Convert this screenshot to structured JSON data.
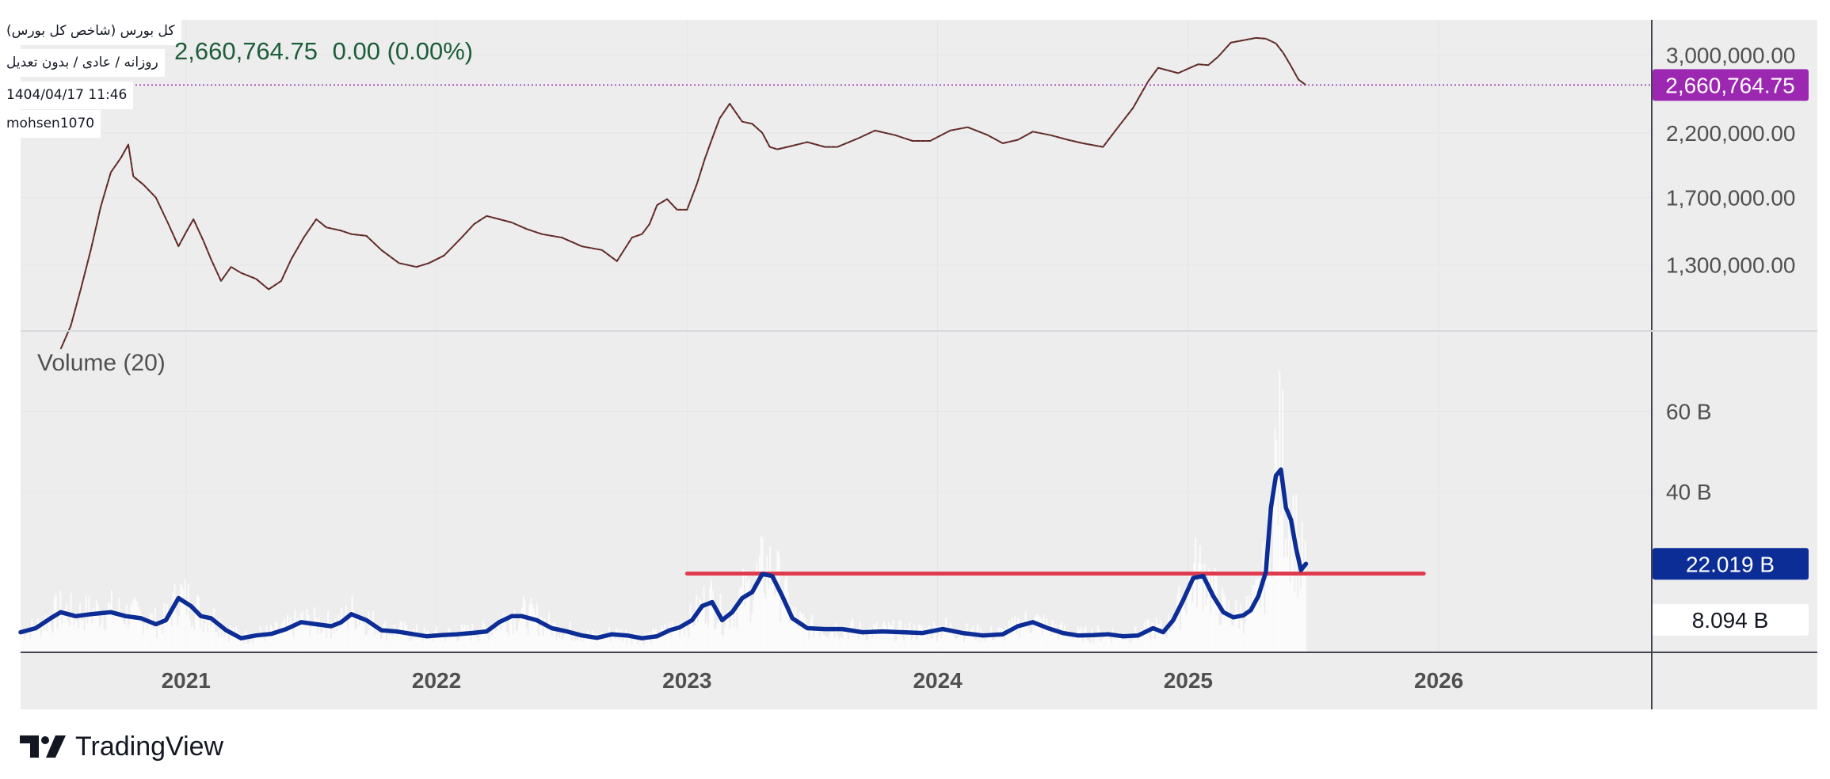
{
  "info": {
    "symbol_name": "کل بورس (شاخص کل بورس)",
    "interval": "روزانه / عادی / بدون تعدیل",
    "datetime": "1404/04/17 11:46",
    "author": "mohsen1070"
  },
  "header": {
    "last_price": "2,660,764.75",
    "change": "0.00 (0.00%)"
  },
  "volume_title": "Volume (20)",
  "brand": {
    "name": "TradingView"
  },
  "colors": {
    "pane_bg": "#ededed",
    "axis_line": "#434651",
    "grid": "#e2e6ea",
    "price_line": "#9c27b0",
    "price_badge": "#9c27b0",
    "candle_up": "#1b8a6b",
    "candle_down": "#6b1f1f",
    "ma_line": "#0d2d96",
    "volume_badge": "#0d2d96",
    "level_line": "#e03a4d",
    "volume_bars": "#ffffff"
  },
  "chart_data": {
    "type": "line",
    "price_scale": "log",
    "x_axis": {
      "ticks": [
        "2021",
        "2022",
        "2023",
        "2024",
        "2025",
        "2026"
      ],
      "range": [
        2020.34,
        2026.85
      ]
    },
    "price_pane": {
      "ylim": [
        1000000,
        3450000
      ],
      "tick_labels": [
        {
          "value": 1300000,
          "label": "1,300,000.00"
        },
        {
          "value": 1700000,
          "label": "1,700,000.00"
        },
        {
          "value": 2200000,
          "label": "2,200,000.00"
        },
        {
          "value": 3000000,
          "label": "3,000,000.00"
        }
      ],
      "last_value": 2660764.75,
      "last_label": "2,660,764.75",
      "series": {
        "x": [
          2020.5,
          2020.54,
          2020.58,
          2020.62,
          2020.66,
          2020.7,
          2020.74,
          2020.77,
          2020.79,
          2020.83,
          2020.88,
          2020.93,
          2020.97,
          2021.0,
          2021.03,
          2021.07,
          2021.1,
          2021.14,
          2021.18,
          2021.22,
          2021.28,
          2021.33,
          2021.38,
          2021.42,
          2021.47,
          2021.52,
          2021.56,
          2021.62,
          2021.66,
          2021.72,
          2021.78,
          2021.85,
          2021.92,
          2021.97,
          2022.03,
          2022.1,
          2022.15,
          2022.2,
          2022.25,
          2022.3,
          2022.36,
          2022.42,
          2022.5,
          2022.58,
          2022.66,
          2022.72,
          2022.78,
          2022.82,
          2022.85,
          2022.88,
          2022.92,
          2022.96,
          2023.0,
          2023.04,
          2023.07,
          2023.1,
          2023.13,
          2023.17,
          2023.22,
          2023.26,
          2023.3,
          2023.33,
          2023.36,
          2023.42,
          2023.48,
          2023.55,
          2023.6,
          2023.68,
          2023.75,
          2023.83,
          2023.9,
          2023.97,
          2024.05,
          2024.12,
          2024.2,
          2024.26,
          2024.32,
          2024.38,
          2024.45,
          2024.52,
          2024.58,
          2024.66,
          2024.72,
          2024.78,
          2024.84,
          2024.88,
          2024.92,
          2024.96,
          2025.0,
          2025.04,
          2025.08,
          2025.12,
          2025.17,
          2025.22,
          2025.27,
          2025.31,
          2025.35,
          2025.38,
          2025.41,
          2025.44,
          2025.47
        ],
        "y": [
          930000,
          1020000,
          1180000,
          1380000,
          1640000,
          1880000,
          1990000,
          2100000,
          1850000,
          1790000,
          1700000,
          1530000,
          1400000,
          1480000,
          1560000,
          1430000,
          1330000,
          1220000,
          1290000,
          1260000,
          1230000,
          1180000,
          1220000,
          1330000,
          1450000,
          1560000,
          1510000,
          1490000,
          1470000,
          1460000,
          1380000,
          1310000,
          1290000,
          1310000,
          1350000,
          1450000,
          1530000,
          1580000,
          1560000,
          1540000,
          1500000,
          1470000,
          1450000,
          1400000,
          1380000,
          1320000,
          1450000,
          1470000,
          1530000,
          1650000,
          1690000,
          1620000,
          1620000,
          1800000,
          1980000,
          2150000,
          2330000,
          2470000,
          2300000,
          2280000,
          2200000,
          2080000,
          2060000,
          2090000,
          2120000,
          2080000,
          2080000,
          2150000,
          2220000,
          2180000,
          2130000,
          2130000,
          2220000,
          2250000,
          2180000,
          2110000,
          2140000,
          2210000,
          2180000,
          2140000,
          2110000,
          2080000,
          2250000,
          2430000,
          2700000,
          2850000,
          2820000,
          2790000,
          2840000,
          2890000,
          2880000,
          2980000,
          3150000,
          3180000,
          3210000,
          3200000,
          3140000,
          3020000,
          2870000,
          2720000,
          2660764.75
        ]
      }
    },
    "volume_pane": {
      "ylim": [
        0,
        80
      ],
      "unit": "B",
      "tick_labels": [
        {
          "value": 40,
          "label": "40 B"
        },
        {
          "value": 60,
          "label": "60 B"
        }
      ],
      "last_ma_value": 22.019,
      "last_ma_label": "22.019 B",
      "last_volume_value": 8.094,
      "last_volume_label": "8.094 B",
      "horizontal_level": {
        "value": 19.6,
        "x_start": 2023.0,
        "x_end": 2025.94
      },
      "ma_series": {
        "name": "Volume (20)",
        "x": [
          2020.34,
          2020.4,
          2020.46,
          2020.5,
          2020.56,
          2020.62,
          2020.7,
          2020.76,
          2020.82,
          2020.88,
          2020.92,
          2020.97,
          2021.02,
          2021.06,
          2021.1,
          2021.16,
          2021.22,
          2021.28,
          2021.34,
          2021.4,
          2021.46,
          2021.52,
          2021.58,
          2021.62,
          2021.66,
          2021.72,
          2021.78,
          2021.84,
          2021.9,
          2021.96,
          2022.02,
          2022.08,
          2022.14,
          2022.2,
          2022.25,
          2022.3,
          2022.34,
          2022.4,
          2022.46,
          2022.52,
          2022.58,
          2022.64,
          2022.7,
          2022.76,
          2022.82,
          2022.88,
          2022.93,
          2022.97,
          2023.02,
          2023.06,
          2023.1,
          2023.14,
          2023.18,
          2023.22,
          2023.26,
          2023.3,
          2023.34,
          2023.38,
          2023.42,
          2023.48,
          2023.55,
          2023.62,
          2023.7,
          2023.78,
          2023.86,
          2023.94,
          2024.02,
          2024.1,
          2024.18,
          2024.26,
          2024.32,
          2024.38,
          2024.44,
          2024.5,
          2024.56,
          2024.62,
          2024.68,
          2024.74,
          2024.8,
          2024.86,
          2024.9,
          2024.94,
          2024.98,
          2025.02,
          2025.06,
          2025.1,
          2025.14,
          2025.18,
          2025.22,
          2025.25,
          2025.28,
          2025.31,
          2025.33,
          2025.35,
          2025.37,
          2025.39,
          2025.41,
          2025.43,
          2025.45,
          2025.47
        ],
        "y": [
          5.0,
          6.0,
          8.5,
          10.0,
          9.0,
          9.5,
          10.0,
          9.0,
          8.5,
          7.0,
          8.0,
          13.5,
          11.5,
          9.0,
          8.5,
          5.5,
          3.5,
          4.2,
          4.6,
          5.8,
          7.5,
          7.0,
          6.5,
          7.5,
          9.5,
          8.0,
          5.5,
          5.2,
          4.6,
          4.0,
          4.3,
          4.5,
          4.8,
          5.2,
          7.5,
          9.0,
          9.0,
          8.0,
          6.0,
          5.2,
          4.2,
          3.6,
          4.5,
          4.2,
          3.5,
          4.0,
          5.5,
          6.2,
          8.0,
          11.5,
          12.5,
          8.0,
          10.0,
          13.5,
          15.0,
          19.5,
          19.0,
          14.0,
          8.5,
          6.0,
          5.8,
          5.8,
          5.0,
          5.2,
          5.0,
          4.8,
          5.8,
          4.8,
          4.2,
          4.5,
          6.5,
          7.5,
          6.0,
          4.8,
          4.2,
          4.3,
          4.5,
          4.0,
          4.2,
          6.0,
          5.0,
          8.0,
          13.0,
          18.5,
          19.0,
          14.0,
          10.0,
          8.7,
          9.2,
          10.5,
          14.0,
          20.0,
          36.0,
          44.0,
          45.5,
          36.0,
          33.0,
          26.0,
          20.5,
          22.019
        ]
      }
    }
  }
}
